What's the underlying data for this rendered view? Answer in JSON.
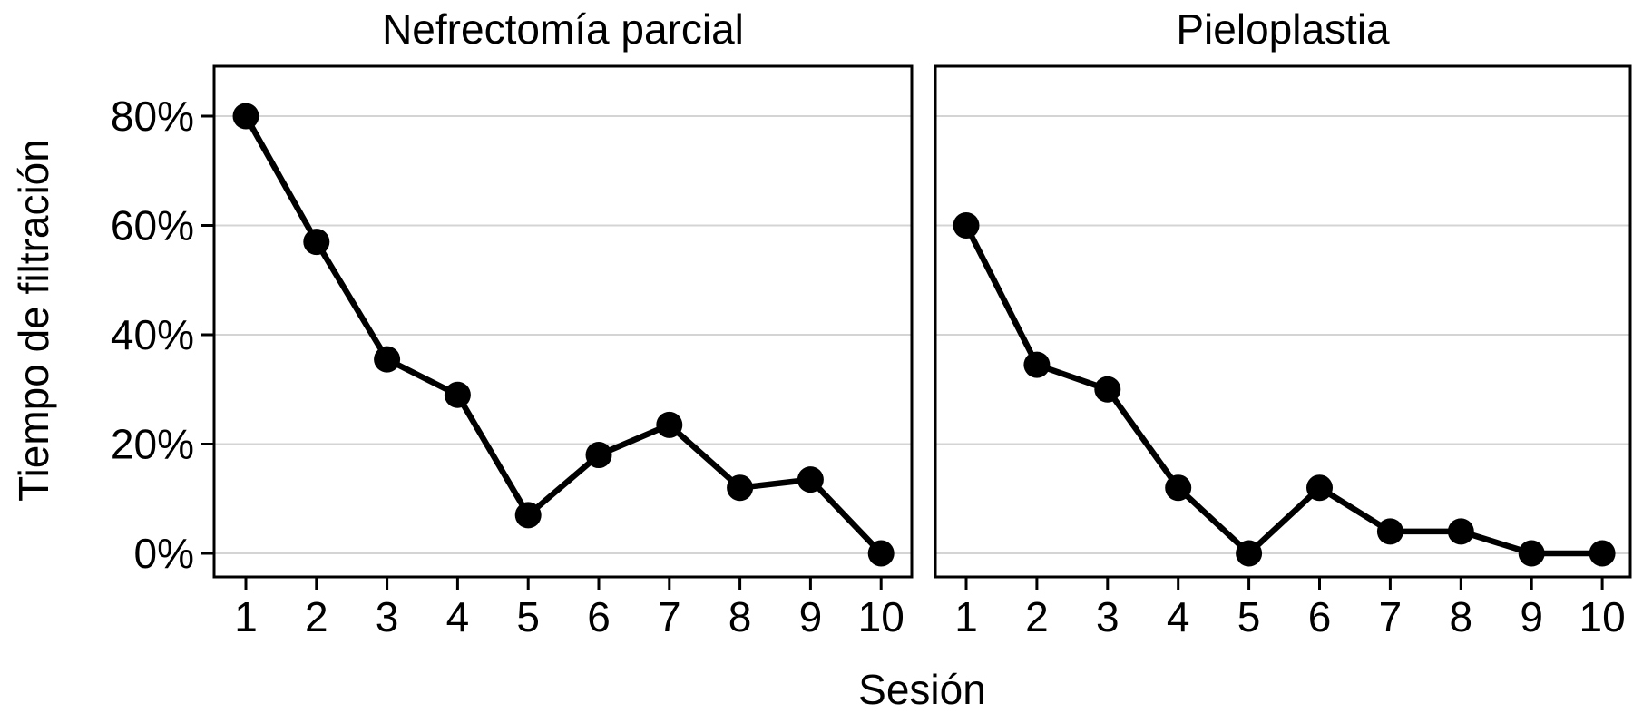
{
  "figure": {
    "background_color": "#ffffff",
    "text_color": "#000000",
    "grid_color": "#d4d4d4",
    "border_color": "#000000",
    "line_color": "#000000",
    "marker_color": "#000000"
  },
  "chart_data": {
    "type": "line",
    "xlabel": "Sesión",
    "ylabel": "Tiempo de filtración",
    "x": [
      1,
      2,
      3,
      4,
      5,
      6,
      7,
      8,
      9,
      10
    ],
    "x_tick_labels": [
      "1",
      "2",
      "3",
      "4",
      "5",
      "6",
      "7",
      "8",
      "9",
      "10"
    ],
    "y_ticks": [
      0,
      20,
      40,
      60,
      80
    ],
    "y_tick_labels": [
      "0%",
      "20%",
      "40%",
      "60%",
      "80%"
    ],
    "ylim": [
      -4.3,
      89.1
    ],
    "grid": "horizontal",
    "legend": "none",
    "facets": [
      {
        "title": "Nefrectomía parcial",
        "series": [
          {
            "name": "Tiempo de filtración",
            "values": [
              80,
              57,
              35.5,
              29,
              7,
              18,
              23.5,
              12,
              13.5,
              0
            ]
          }
        ]
      },
      {
        "title": "Pieloplastia",
        "series": [
          {
            "name": "Tiempo de filtración",
            "values": [
              60,
              34.5,
              30,
              12,
              0,
              12,
              4,
              4,
              0,
              0
            ]
          }
        ]
      }
    ]
  }
}
